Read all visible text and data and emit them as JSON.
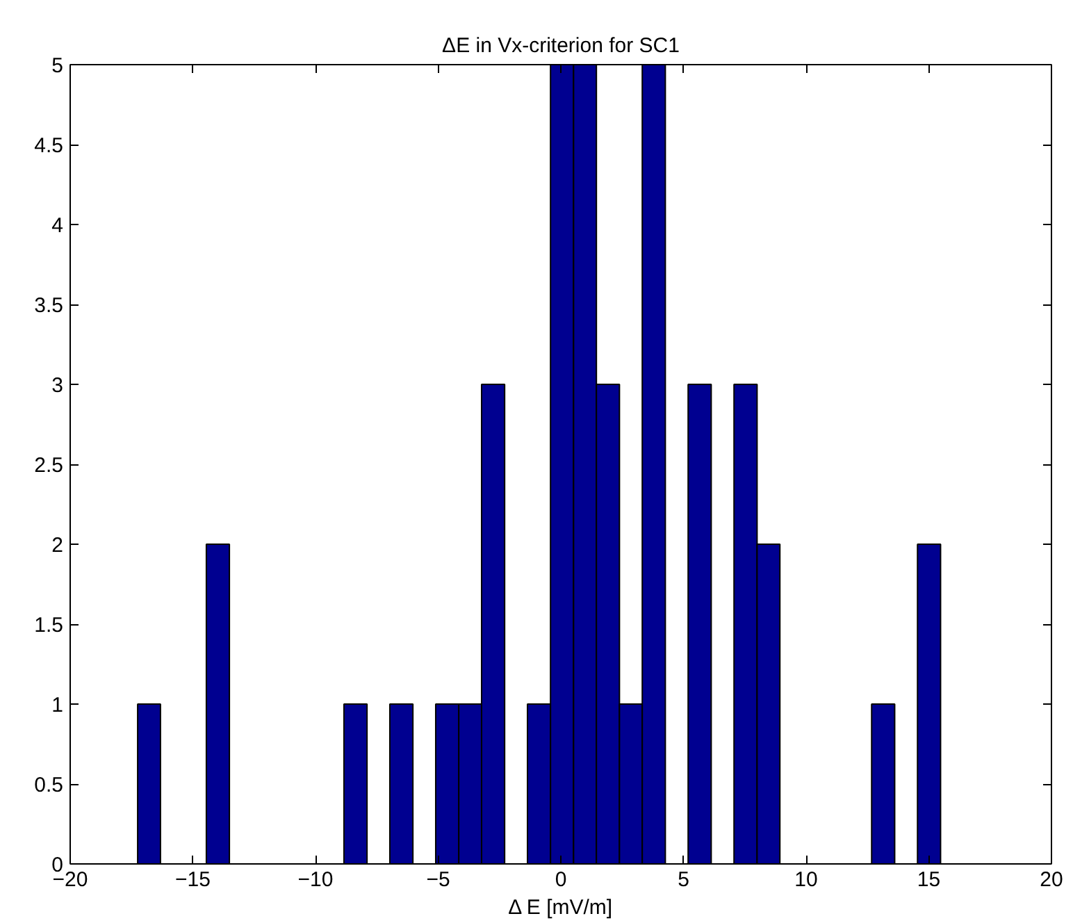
{
  "chart_data": {
    "type": "histogram",
    "title": "ΔE in Vx-criterion for SC1",
    "xlabel": "Δ E [mV/m]",
    "bins": [
      -17.25,
      -16.32,
      -15.38,
      -14.45,
      -13.51,
      -12.58,
      -11.64,
      -10.71,
      -9.77,
      -8.84,
      -7.9,
      -6.97,
      -6.03,
      -5.1,
      -4.16,
      -3.23,
      -2.29,
      -1.36,
      -0.42,
      0.52,
      1.45,
      2.39,
      3.32,
      4.26,
      5.19,
      6.13,
      7.06,
      8.0,
      8.93,
      9.87,
      10.8,
      11.74,
      12.67,
      13.61,
      14.54,
      15.48
    ],
    "values": [
      1,
      0,
      0,
      2,
      0,
      0,
      0,
      0,
      0,
      1,
      0,
      1,
      0,
      1,
      1,
      3,
      0,
      1,
      5,
      5,
      3,
      1,
      5,
      0,
      3,
      0,
      3,
      2,
      0,
      0,
      0,
      0,
      1,
      0,
      2
    ],
    "color": "#000090",
    "xlim": [
      -20,
      20
    ],
    "xticks": [
      {
        "value": -20,
        "label": "−20"
      },
      {
        "value": -15,
        "label": "−15"
      },
      {
        "value": -10,
        "label": "−10"
      },
      {
        "value": -5,
        "label": "−5"
      },
      0,
      5,
      10,
      15,
      20
    ],
    "ylim": [
      0,
      5
    ],
    "yticks": [
      0,
      0.5,
      1,
      1.5,
      2,
      2.5,
      3,
      3.5,
      4,
      4.5,
      5
    ],
    "grid": false
  }
}
